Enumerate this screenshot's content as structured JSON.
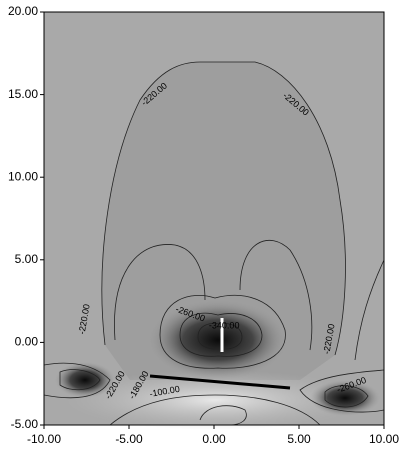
{
  "chart_data": {
    "type": "contour",
    "xlim": [
      -10,
      10
    ],
    "ylim": [
      -5,
      20
    ],
    "xticks": [
      {
        "value": -10,
        "label": "-10.00"
      },
      {
        "value": -5,
        "label": "-5.00"
      },
      {
        "value": 0,
        "label": "0.00"
      },
      {
        "value": 5,
        "label": "5.00"
      },
      {
        "value": 10,
        "label": "10.00"
      }
    ],
    "yticks": [
      {
        "value": -5,
        "label": "-5.00"
      },
      {
        "value": 0,
        "label": "0.00"
      },
      {
        "value": 5,
        "label": "5.00"
      },
      {
        "value": 10,
        "label": "10.00"
      },
      {
        "value": 15,
        "label": "15.00"
      },
      {
        "value": 20,
        "label": "20.00"
      }
    ],
    "contour_labels": [
      {
        "x": -3.5,
        "y": 15.0,
        "value": -220,
        "label": "-220.00"
      },
      {
        "x": 4.8,
        "y": 14.4,
        "value": -220,
        "label": "-220.00"
      },
      {
        "x": -7.6,
        "y": 1.4,
        "value": -220,
        "label": "-220.00"
      },
      {
        "x": -1.4,
        "y": 1.7,
        "value": -260,
        "label": "-260.00"
      },
      {
        "x": 0.6,
        "y": 1.0,
        "value": -340,
        "label": "-340.00"
      },
      {
        "x": 6.8,
        "y": 0.2,
        "value": -220,
        "label": "-220.00"
      },
      {
        "x": -5.8,
        "y": -2.6,
        "value": -220,
        "label": "-220.00"
      },
      {
        "x": -4.4,
        "y": -2.6,
        "value": -180,
        "label": "-180.00"
      },
      {
        "x": -2.9,
        "y": -3.0,
        "value": -100,
        "label": "-100.00"
      },
      {
        "x": 8.1,
        "y": -2.6,
        "value": -260,
        "label": "-260.00"
      }
    ]
  }
}
